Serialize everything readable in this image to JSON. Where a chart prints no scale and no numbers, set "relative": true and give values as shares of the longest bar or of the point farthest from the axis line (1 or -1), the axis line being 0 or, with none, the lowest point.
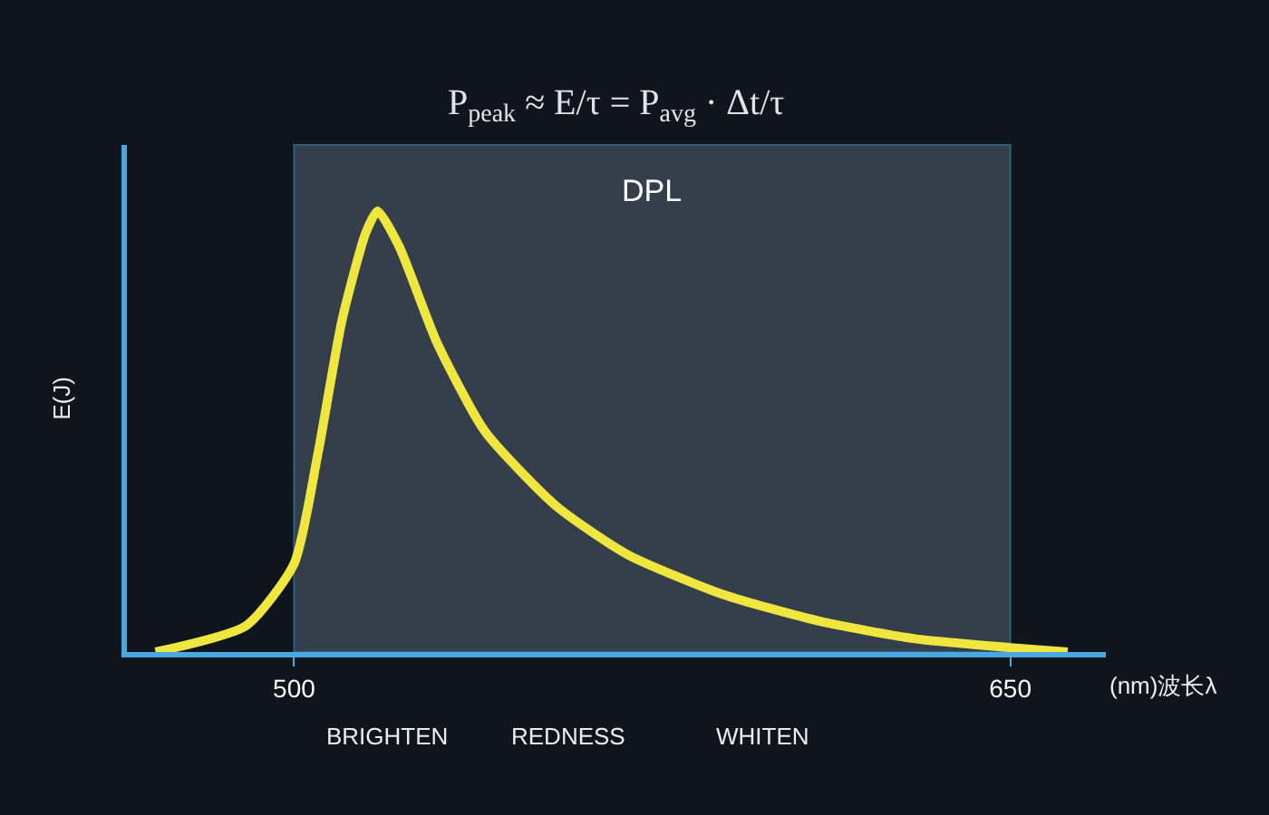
{
  "chart_data": {
    "type": "line",
    "relative": true,
    "xlabel": "(nm)波长λ",
    "ylabel": "E(J)",
    "x": [
      471,
      490,
      500,
      505,
      510,
      515,
      517.5,
      522,
      530,
      540,
      555,
      570,
      590,
      610,
      630,
      650,
      662
    ],
    "series": [
      {
        "color": "#f0e640",
        "values": [
          0,
          0.06,
          0.2,
          0.45,
          0.75,
          0.95,
          1,
          0.92,
          0.7,
          0.5,
          0.33,
          0.22,
          0.13,
          0.07,
          0.03,
          0.01,
          0
        ]
      }
    ],
    "xlim": [
      465,
      670
    ],
    "xticks": [
      500,
      650
    ],
    "bands": [
      {
        "axis": "x",
        "from": 500,
        "to": 650,
        "label": "DPL",
        "color": "#5a6a7a"
      }
    ],
    "annotations": [
      "P$_{peak}$ ≈ E/τ = P$_{avg}$ · Δt/τ",
      "BRIGHTEN",
      "REDNESS",
      "WHITEN"
    ],
    "grid": false,
    "line_style": "solid",
    "marker": "none"
  }
}
